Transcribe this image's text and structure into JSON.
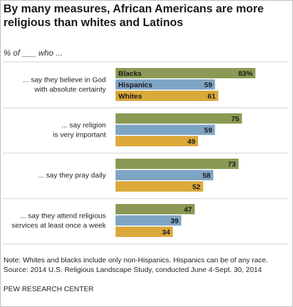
{
  "chart_data": {
    "type": "bar",
    "orientation": "horizontal",
    "title": "By many measures, African Americans are more religious than whites and Latinos",
    "subtitle": "% of ___ who ...",
    "categories": [
      [
        "... say they believe in God",
        "with absolute certainty"
      ],
      [
        "... say religion",
        "is very important"
      ],
      [
        "... say they pray daily"
      ],
      [
        "... say they attend religious",
        "services at least once a week"
      ]
    ],
    "series": [
      {
        "name": "Blacks",
        "values": [
          83,
          75,
          73,
          47
        ],
        "color": "#8a9a55"
      },
      {
        "name": "Hispanics",
        "values": [
          59,
          59,
          58,
          39
        ],
        "color": "#7ea4c4"
      },
      {
        "name": "Whites",
        "values": [
          61,
          49,
          52,
          34
        ],
        "color": "#dba83a"
      }
    ],
    "value_labels": [
      [
        "83%",
        "75",
        "73",
        "47"
      ],
      [
        "59",
        "59",
        "58",
        "39"
      ],
      [
        "61",
        "49",
        "52",
        "34"
      ]
    ],
    "legend": "inside first bar group",
    "grid": false,
    "xlim": [
      0,
      100
    ]
  },
  "notes": "Note: Whites and blacks include only non-Hispanics. Hispanics can be of any race.",
  "source": "Source: 2014 U.S. Religious Landscape Study, conducted June 4-Sept. 30, 2014",
  "organization": "PEW RESEARCH CENTER"
}
